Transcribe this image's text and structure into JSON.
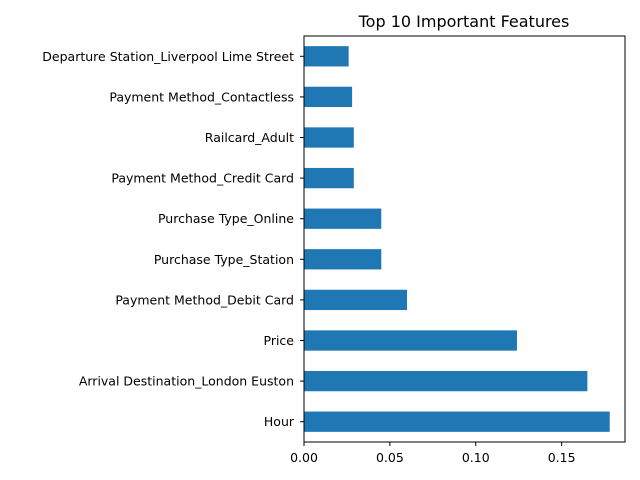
{
  "chart_data": {
    "type": "bar",
    "orientation": "horizontal",
    "title": "Top 10 Important Features",
    "xlabel": "",
    "ylabel": "",
    "categories": [
      "Departure Station_Liverpool Lime Street",
      "Payment Method_Contactless",
      "Railcard_Adult",
      "Payment Method_Credit Card",
      "Purchase Type_Online",
      "Purchase Type_Station",
      "Payment Method_Debit Card",
      "Price",
      "Arrival Destination_London Euston",
      "Hour"
    ],
    "values": [
      0.026,
      0.028,
      0.029,
      0.029,
      0.045,
      0.045,
      0.06,
      0.124,
      0.165,
      0.178
    ],
    "xlim": [
      0,
      0.1869
    ],
    "xticks": [
      0.0,
      0.05,
      0.1,
      0.15
    ],
    "xtick_labels": [
      "0.00",
      "0.05",
      "0.10",
      "0.15"
    ],
    "bar_color": "#1f77b4",
    "grid": false
  }
}
